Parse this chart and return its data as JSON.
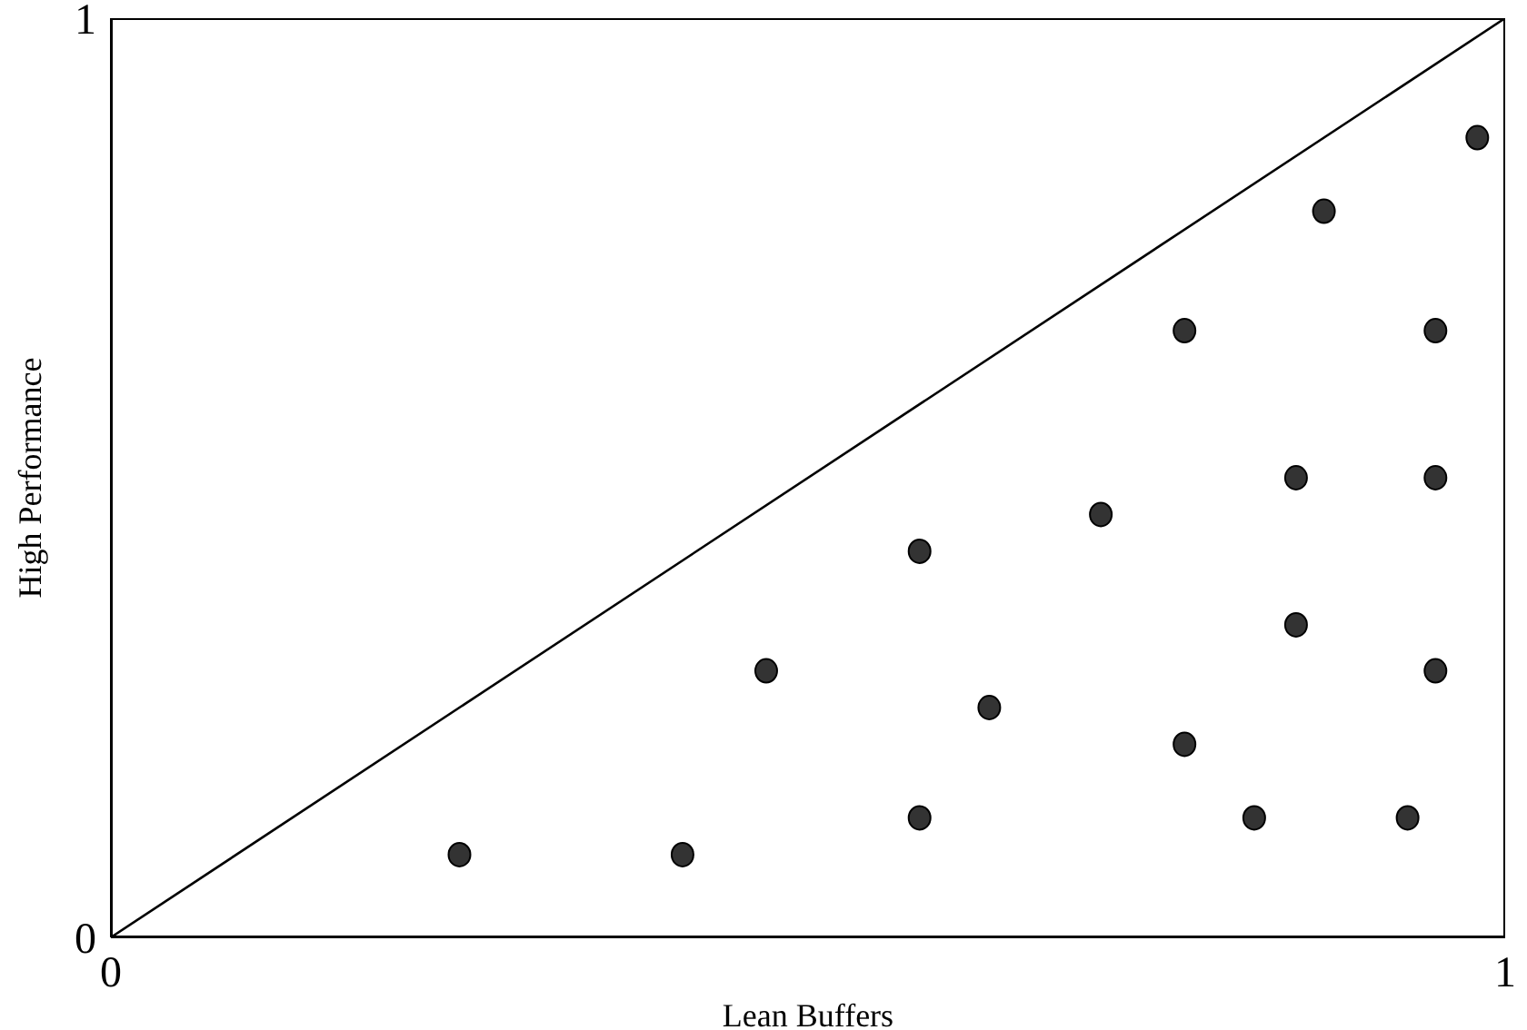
{
  "chart_data": {
    "type": "scatter",
    "xlabel": "Lean Buffers",
    "ylabel": "High Performance",
    "xlim": [
      0,
      1
    ],
    "ylim": [
      0,
      1
    ],
    "xticks": [
      0,
      1
    ],
    "yticks": [
      0,
      1
    ],
    "grid": false,
    "marker": "circle",
    "series": [
      {
        "color": "#333333",
        "x": [
          0.25,
          0.41,
          0.47,
          0.58,
          0.58,
          0.63,
          0.71,
          0.77,
          0.77,
          0.82,
          0.85,
          0.85,
          0.87,
          0.93,
          0.95,
          0.95,
          0.95,
          0.98
        ],
        "values": [
          0.09,
          0.09,
          0.29,
          0.42,
          0.13,
          0.25,
          0.46,
          0.66,
          0.21,
          0.13,
          0.5,
          0.34,
          0.79,
          0.13,
          0.66,
          0.5,
          0.29,
          0.87
        ]
      },
      {
        "type": "line",
        "color": "#000000",
        "x": [
          0,
          1
        ],
        "values": [
          0,
          1
        ],
        "marker": "none",
        "line_style": "solid"
      }
    ]
  }
}
